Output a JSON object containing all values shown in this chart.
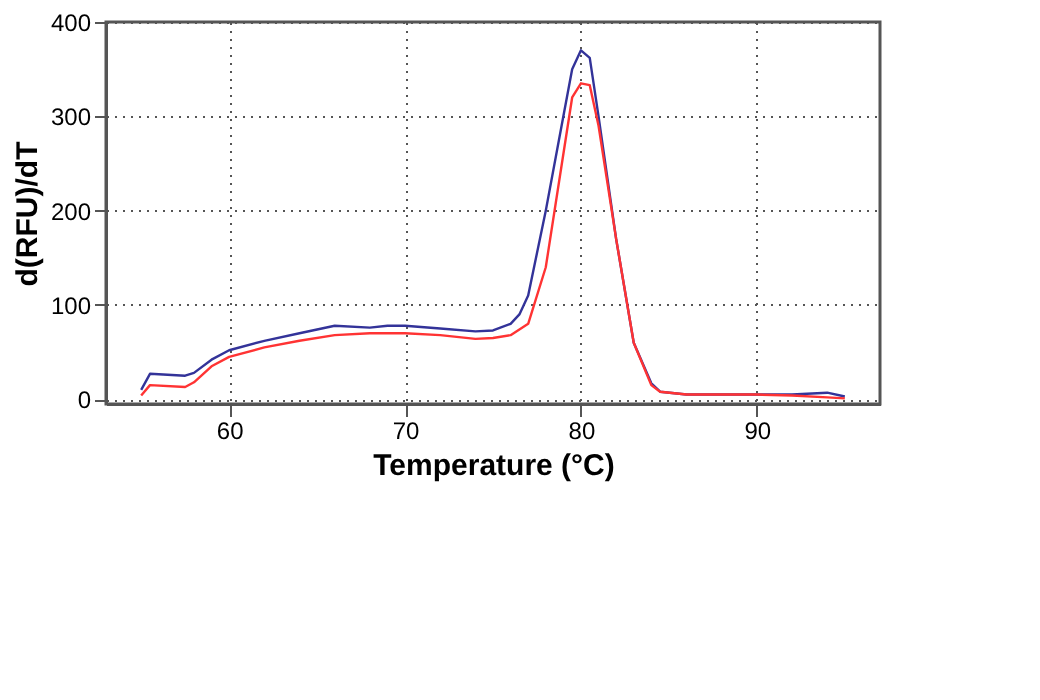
{
  "chart_data": {
    "type": "line",
    "xlabel": "Temperature (°C)",
    "ylabel": "d(RFU)/dT",
    "xlim": [
      53,
      97
    ],
    "xticks": [
      60,
      70,
      80,
      90
    ],
    "ylim": [
      -5,
      400
    ],
    "yticks": [
      0,
      100,
      200,
      300,
      400
    ],
    "grid": true,
    "legend": false,
    "marker": "none",
    "line_style": "solid",
    "series": [
      {
        "color": "#333399",
        "x": [
          55,
          55.5,
          57.5,
          58,
          59,
          60,
          62,
          64,
          66,
          68,
          69,
          70,
          72,
          74,
          75,
          76,
          76.5,
          77,
          78,
          79,
          79.5,
          80,
          80.5,
          81,
          82,
          83,
          84,
          84.5,
          86,
          88,
          90,
          92,
          94,
          95
        ],
        "values": [
          10,
          27,
          25,
          28,
          42,
          52,
          62,
          70,
          78,
          76,
          78,
          78,
          75,
          72,
          73,
          80,
          90,
          110,
          200,
          300,
          350,
          370,
          362,
          300,
          170,
          60,
          17,
          8,
          5,
          5,
          5,
          5,
          7,
          3
        ]
      },
      {
        "color": "#ff3333",
        "x": [
          55,
          55.5,
          57.5,
          58,
          59,
          60,
          62,
          64,
          66,
          68,
          70,
          72,
          74,
          75,
          76,
          77,
          78,
          79,
          79.5,
          80,
          80.5,
          81,
          82,
          83,
          84,
          84.5,
          86,
          88,
          90,
          92,
          94,
          95
        ],
        "values": [
          4,
          15,
          13,
          18,
          35,
          45,
          55,
          62,
          68,
          70,
          70,
          68,
          64,
          65,
          68,
          80,
          140,
          260,
          320,
          335,
          333,
          290,
          170,
          60,
          15,
          8,
          5,
          5,
          5,
          4,
          2,
          1
        ]
      }
    ]
  }
}
